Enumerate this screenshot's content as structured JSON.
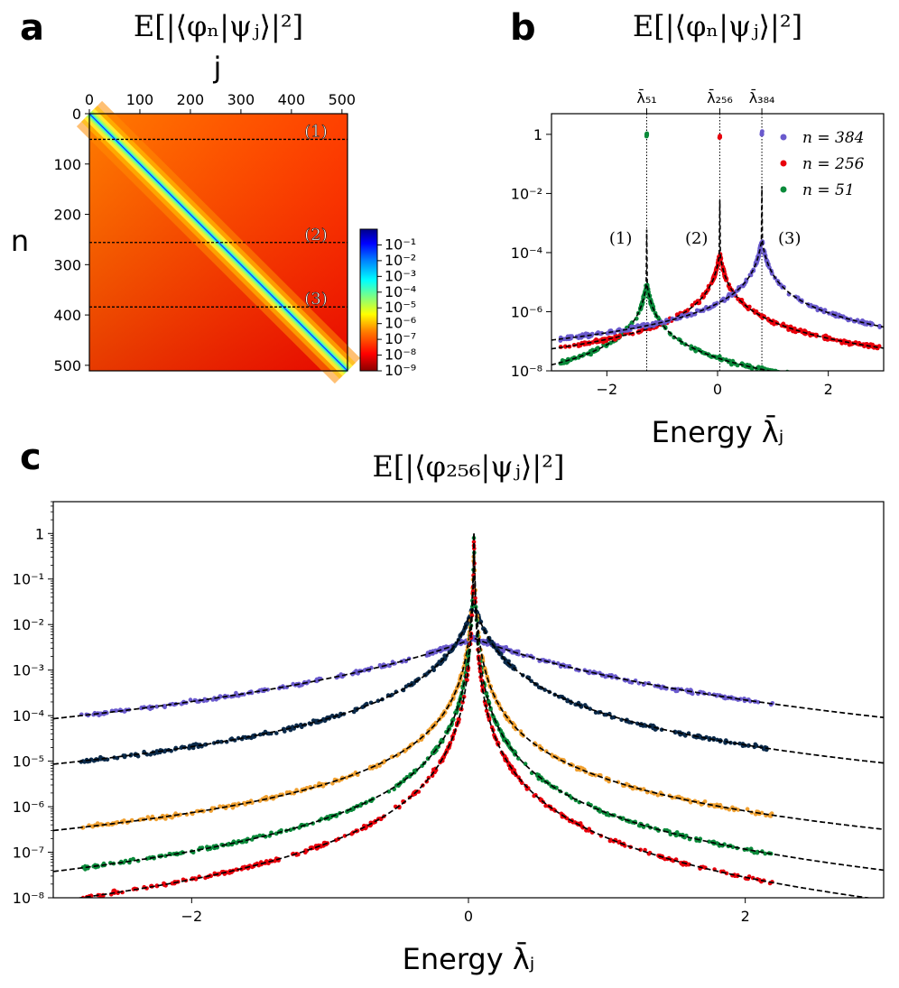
{
  "panel_labels": {
    "a": "a",
    "b": "b",
    "c": "c"
  },
  "titles": {
    "a": "E[|⟨φₙ|ψⱼ⟩|²]",
    "b": "E[|⟨φₙ|ψⱼ⟩|²]",
    "c": "E[|⟨φ₂₅₆|ψⱼ⟩|²]"
  },
  "axis_labels": {
    "a_x": "j",
    "a_y": "n",
    "b_x": "Energy λ̄ⱼ",
    "c_x": "Energy λ̄ⱼ"
  },
  "colors": {
    "purple": "#6a5acd",
    "red": "#e8000b",
    "green": "#0a8a3a",
    "orange": "#f0a030",
    "navy": "#0b2a4a",
    "dashed_fit": "#000000"
  },
  "chart_data": [
    {
      "type": "heatmap",
      "panel": "a",
      "x_ticks": [
        "0",
        "100",
        "200",
        "300",
        "400",
        "500"
      ],
      "y_ticks": [
        "0",
        "100",
        "200",
        "300",
        "400",
        "500"
      ],
      "xlim": [
        0,
        511
      ],
      "ylim": [
        0,
        511
      ],
      "colorbar_ticks": [
        "10⁻¹",
        "10⁻²",
        "10⁻³",
        "10⁻⁴",
        "10⁻⁵",
        "10⁻⁶",
        "10⁻⁷",
        "10⁻⁸",
        "10⁻⁹"
      ],
      "colorbar_range": [
        1e-09,
        1
      ],
      "colormap": "jet",
      "horizontal_lines_n": [
        51,
        256,
        384
      ],
      "annotations": [
        "(1)",
        "(2)",
        "(3)"
      ],
      "annotation_rows": [
        51,
        256,
        384
      ]
    },
    {
      "type": "scatter",
      "panel": "b",
      "yscale": "log",
      "xlim": [
        -3,
        3
      ],
      "ylim": [
        1e-08,
        5
      ],
      "x_ticks": [
        "−2",
        "0",
        "2"
      ],
      "x_tick_values": [
        -2,
        0,
        2
      ],
      "y_ticks": [
        "1",
        "10⁻²",
        "10⁻⁴",
        "10⁻⁶",
        "10⁻⁸"
      ],
      "y_tick_values": [
        1,
        0.01,
        0.0001,
        1e-06,
        1e-08
      ],
      "top_tick_labels": [
        "λ̄₅₁",
        "λ̄₂₅₆",
        "λ̄₃₈₄"
      ],
      "top_tick_values": [
        -1.28,
        0.04,
        0.8
      ],
      "legend": [
        "n = 384",
        "n = 256",
        "n = 51"
      ],
      "legend_position": "top-right",
      "annotations": [
        "(1)",
        "(2)",
        "(3)"
      ],
      "series": [
        {
          "name": "n = 384",
          "center": 0.8,
          "peak": 1,
          "near_peak": 0.0003,
          "color_key": "purple"
        },
        {
          "name": "n = 256",
          "center": 0.04,
          "peak": 0.8,
          "near_peak": 0.0001,
          "color_key": "red"
        },
        {
          "name": "n = 51",
          "center": -1.28,
          "peak": 1,
          "near_peak": 1e-05,
          "color_key": "green"
        }
      ]
    },
    {
      "type": "scatter",
      "panel": "c",
      "yscale": "log",
      "xlim": [
        -3,
        3
      ],
      "ylim": [
        1e-08,
        5
      ],
      "x_ticks": [
        "−2",
        "0",
        "2"
      ],
      "x_tick_values": [
        -2,
        0,
        2
      ],
      "y_ticks": [
        "1",
        "10⁻¹",
        "10⁻²",
        "10⁻³",
        "10⁻⁴",
        "10⁻⁵",
        "10⁻⁶",
        "10⁻⁷",
        "10⁻⁸"
      ],
      "y_tick_values": [
        1,
        0.1,
        0.01,
        0.001,
        0.0001,
        1e-05,
        1e-06,
        1e-07,
        1e-08
      ],
      "center": 0.04,
      "series": [
        {
          "peak": 0.005,
          "at_x_minus_2_8": 0.0001,
          "color_key": "purple"
        },
        {
          "peak": 0.03,
          "at_x_minus_2_8": 1e-05,
          "color_key": "navy"
        },
        {
          "peak": 1,
          "at_x_minus_2_8": 3.5e-07,
          "color_key": "orange"
        },
        {
          "peak": 1,
          "at_x_minus_2_8": 4.5e-08,
          "color_key": "green"
        },
        {
          "peak": 1,
          "at_x_minus_2_8": 1e-08,
          "color_key": "red"
        }
      ]
    }
  ]
}
